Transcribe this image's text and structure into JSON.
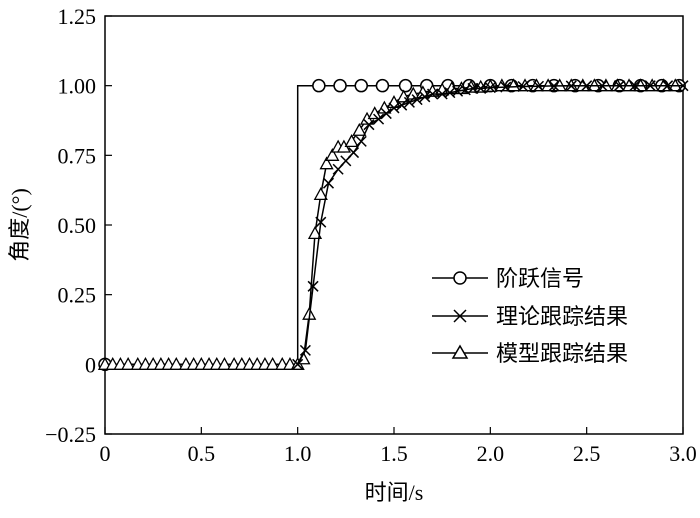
{
  "chart_data": {
    "type": "line",
    "xlabel": "时间/s",
    "ylabel": "角度/(°)",
    "xlim": [
      0,
      3.0
    ],
    "ylim": [
      -0.25,
      1.25
    ],
    "xticks": [
      0,
      0.5,
      1.0,
      1.5,
      2.0,
      2.5,
      3.0
    ],
    "xtick_labels": [
      "0",
      "0.5",
      "1.0",
      "1.5",
      "2.0",
      "2.5",
      "3.0"
    ],
    "yticks": [
      -0.25,
      0,
      0.25,
      0.5,
      0.75,
      1.0,
      1.25
    ],
    "ytick_labels": [
      "−0.25",
      "0",
      "0.25",
      "0.50",
      "0.75",
      "1.00",
      "1.25"
    ],
    "grid": false,
    "legend_position": "center-right",
    "series": [
      {
        "name": "阶跃信号",
        "marker": "circle",
        "x": [
          0,
          1.0,
          1.0,
          3.0
        ],
        "y": [
          0,
          0,
          1.0,
          1.0
        ],
        "marker_x": [
          0,
          1.11,
          1.22,
          1.33,
          1.44,
          1.56,
          1.67,
          1.78,
          1.89,
          2.0,
          2.11,
          2.22,
          2.33,
          2.44,
          2.56,
          2.67,
          2.78,
          2.89,
          2.98
        ],
        "marker_y": [
          0,
          1.0,
          1.0,
          1.0,
          1.0,
          1.0,
          1.0,
          1.0,
          1.0,
          1.0,
          1.0,
          1.0,
          1.0,
          1.0,
          1.0,
          1.0,
          1.0,
          1.0,
          1.0
        ]
      },
      {
        "name": "理论跟踪结果",
        "marker": "x",
        "x": [
          1.0,
          1.04,
          1.08,
          1.12,
          1.16,
          1.21,
          1.25,
          1.29,
          1.33,
          1.37,
          1.42,
          1.46,
          1.5,
          1.54,
          1.58,
          1.62,
          1.66,
          1.7,
          1.75,
          1.79,
          1.83,
          1.87,
          1.91,
          1.95,
          2.0,
          2.08,
          2.17,
          2.25,
          2.33,
          2.42,
          2.5,
          2.58,
          2.67,
          2.75,
          2.83,
          2.92,
          3.0
        ],
        "y": [
          0,
          0.05,
          0.28,
          0.51,
          0.65,
          0.7,
          0.73,
          0.76,
          0.8,
          0.86,
          0.88,
          0.9,
          0.92,
          0.93,
          0.94,
          0.95,
          0.96,
          0.97,
          0.97,
          0.975,
          0.98,
          0.985,
          0.99,
          0.99,
          0.993,
          0.995,
          0.997,
          0.998,
          0.999,
          0.999,
          1.0,
          1.0,
          1.0,
          1.0,
          1.0,
          1.0,
          1.0
        ]
      },
      {
        "name": "模型跟踪结果",
        "marker": "triangle",
        "x": [
          0,
          0.04,
          0.08,
          0.12,
          0.17,
          0.21,
          0.25,
          0.29,
          0.33,
          0.37,
          0.42,
          0.46,
          0.5,
          0.54,
          0.58,
          0.62,
          0.67,
          0.71,
          0.75,
          0.79,
          0.83,
          0.87,
          0.92,
          0.96,
          1.0,
          1.03,
          1.06,
          1.09,
          1.12,
          1.15,
          1.18,
          1.21,
          1.24,
          1.28,
          1.32,
          1.36,
          1.4,
          1.45,
          1.5,
          1.55,
          1.6,
          1.65,
          1.7,
          1.75,
          1.8,
          1.85,
          1.9,
          1.95,
          2.0,
          2.06,
          2.12,
          2.18,
          2.24,
          2.3,
          2.36,
          2.42,
          2.48,
          2.54,
          2.6,
          2.66,
          2.72,
          2.78,
          2.84,
          2.9,
          2.96
        ],
        "y": [
          0,
          0,
          0,
          0,
          0,
          0,
          0,
          0,
          0,
          0,
          0,
          0,
          0,
          0,
          0,
          0,
          0,
          0,
          0,
          0,
          0,
          0,
          0,
          0,
          0,
          0.02,
          0.18,
          0.47,
          0.61,
          0.72,
          0.75,
          0.78,
          0.78,
          0.8,
          0.84,
          0.88,
          0.9,
          0.92,
          0.94,
          0.96,
          0.97,
          0.975,
          0.98,
          0.985,
          0.99,
          0.99,
          0.995,
          0.995,
          0.998,
          1.0,
          1.0,
          1.0,
          1.0,
          1.0,
          1.0,
          1.0,
          1.0,
          1.0,
          1.0,
          1.0,
          1.0,
          1.0,
          1.0,
          1.0,
          1.0
        ]
      }
    ]
  }
}
